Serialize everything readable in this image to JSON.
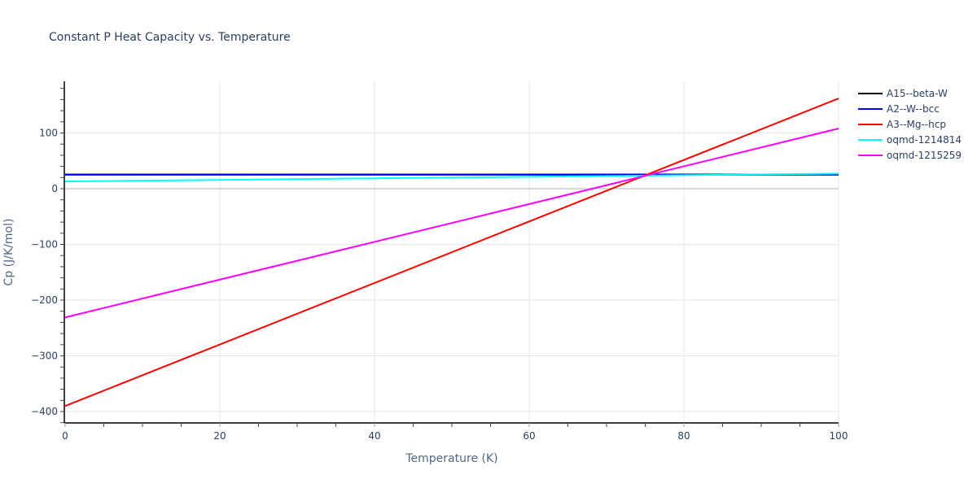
{
  "chart_data": {
    "type": "line",
    "title": "Constant P Heat Capacity vs. Temperature",
    "xlabel": "Temperature (K)",
    "ylabel": "Cp (J/K/mol)",
    "xlim": [
      0,
      100
    ],
    "ylim": [
      -420,
      190
    ],
    "x_ticks": [
      0,
      20,
      40,
      60,
      80,
      100
    ],
    "y_ticks": [
      -400,
      -300,
      -200,
      -100,
      0,
      100
    ],
    "y_tick_labels": [
      "−400",
      "−300",
      "−200",
      "−100",
      "0",
      "100"
    ],
    "grid": true,
    "legend_position": "right",
    "x": [
      0,
      100
    ],
    "series": [
      {
        "name": "A15--beta-W",
        "color": "#000000",
        "values": [
          25.5,
          25.5
        ]
      },
      {
        "name": "A2--W--bcc",
        "color": "#0000ff",
        "values": [
          25,
          25
        ]
      },
      {
        "name": "A3--Mg--hcp",
        "color": "#ff0000",
        "values": [
          -390,
          162
        ]
      },
      {
        "name": "oqmd-1214814",
        "color": "#00ffff",
        "values": [
          13,
          27
        ]
      },
      {
        "name": "oqmd-1215259",
        "color": "#ff00ff",
        "values": [
          -231,
          108
        ]
      }
    ]
  }
}
